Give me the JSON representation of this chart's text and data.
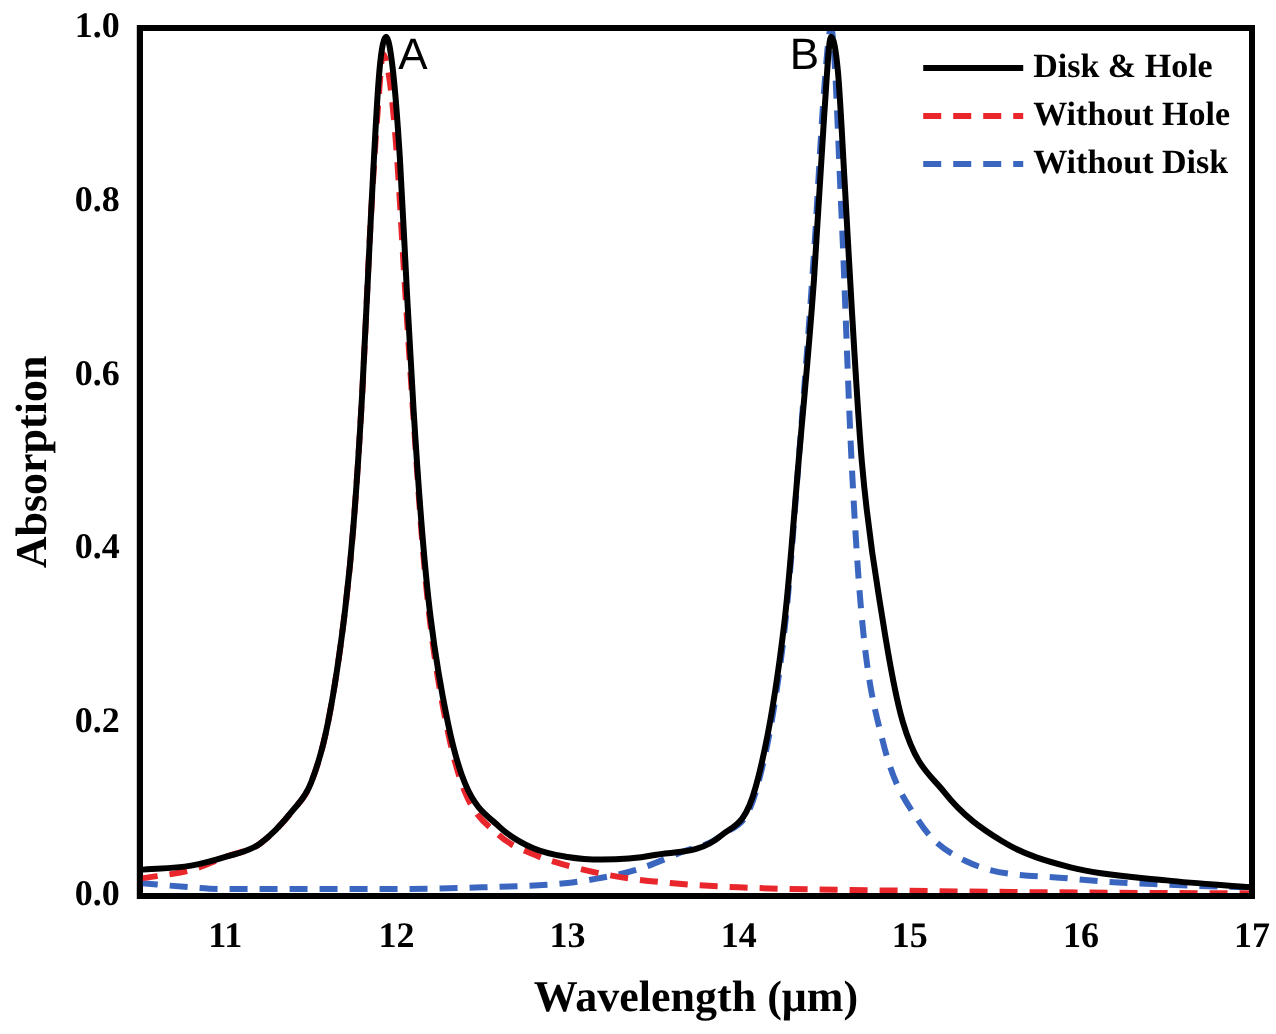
{
  "chart_data": {
    "type": "line",
    "xlabel": "Wavelength (μm)",
    "ylabel": "Absorption",
    "xlim": [
      10.5,
      17
    ],
    "ylim": [
      0,
      1
    ],
    "xticks": [
      11,
      12,
      13,
      14,
      15,
      16,
      17
    ],
    "yticks": [
      {
        "value": 0,
        "label": "0.0"
      },
      {
        "value": 0.2,
        "label": "0.2"
      },
      {
        "value": 0.4,
        "label": "0.4"
      },
      {
        "value": 0.6,
        "label": "0.6"
      },
      {
        "value": 0.8,
        "label": "0.8"
      },
      {
        "value": 1,
        "label": "1.0"
      }
    ],
    "grid": false,
    "legend": "top right",
    "marker": "none",
    "annotations": [
      {
        "text": "A",
        "x": 11.94,
        "y": 0.99
      },
      {
        "text": "B",
        "x": 14.54,
        "y": 0.99
      }
    ],
    "series": [
      {
        "name": "Disk & Hole",
        "color": "#000000",
        "line_style": "solid",
        "x": [
          10.5,
          10.8,
          11.0,
          11.2,
          11.4,
          11.5,
          11.6,
          11.7,
          11.75,
          11.8,
          11.85,
          11.9,
          11.94,
          11.98,
          12.02,
          12.06,
          12.1,
          12.15,
          12.2,
          12.3,
          12.4,
          12.6,
          12.8,
          13.0,
          13.2,
          13.5,
          13.9,
          14.1,
          14.27,
          14.35,
          14.44,
          14.5,
          14.54,
          14.58,
          14.62,
          14.66,
          14.72,
          14.84,
          14.96,
          15.2,
          15.54,
          15.94,
          16.5,
          17
        ],
        "values": [
          0.03,
          0.035,
          0.045,
          0.06,
          0.1,
          0.13,
          0.2,
          0.33,
          0.43,
          0.58,
          0.78,
          0.95,
          0.99,
          0.95,
          0.85,
          0.7,
          0.56,
          0.42,
          0.32,
          0.2,
          0.13,
          0.08,
          0.055,
          0.045,
          0.042,
          0.047,
          0.07,
          0.126,
          0.32,
          0.5,
          0.71,
          0.9,
          0.99,
          0.95,
          0.82,
          0.68,
          0.5,
          0.32,
          0.2,
          0.12,
          0.063,
          0.033,
          0.018,
          0.01
        ]
      },
      {
        "name": "Without Hole",
        "color": "#e8262b",
        "line_style": "dashed",
        "x": [
          10.5,
          10.8,
          11.0,
          11.2,
          11.4,
          11.5,
          11.6,
          11.7,
          11.75,
          11.8,
          11.85,
          11.9,
          11.92,
          11.96,
          12.0,
          12.05,
          12.1,
          12.15,
          12.2,
          12.3,
          12.4,
          12.6,
          12.8,
          13.0,
          13.3,
          13.6,
          14.0,
          15.0,
          16.0,
          17
        ],
        "values": [
          0.02,
          0.03,
          0.045,
          0.06,
          0.1,
          0.13,
          0.2,
          0.33,
          0.43,
          0.58,
          0.78,
          0.93,
          0.97,
          0.94,
          0.86,
          0.7,
          0.55,
          0.41,
          0.31,
          0.19,
          0.12,
          0.07,
          0.048,
          0.035,
          0.022,
          0.015,
          0.01,
          0.006,
          0.004,
          0.003
        ]
      },
      {
        "name": "Without Disk",
        "color": "#3a66c0",
        "line_style": "dashed",
        "x": [
          10.5,
          10.8,
          11.0,
          11.5,
          12.0,
          12.5,
          13.0,
          13.17,
          13.4,
          13.66,
          13.9,
          14.1,
          14.27,
          14.35,
          14.44,
          14.5,
          14.54,
          14.6,
          14.66,
          14.72,
          14.84,
          15.05,
          15.33,
          15.94,
          16.5,
          17
        ],
        "values": [
          0.015,
          0.01,
          0.008,
          0.008,
          0.008,
          0.01,
          0.015,
          0.02,
          0.03,
          0.05,
          0.07,
          0.12,
          0.31,
          0.5,
          0.74,
          0.93,
          1.0,
          0.79,
          0.5,
          0.32,
          0.18,
          0.087,
          0.04,
          0.02,
          0.013,
          0.01
        ]
      }
    ]
  }
}
